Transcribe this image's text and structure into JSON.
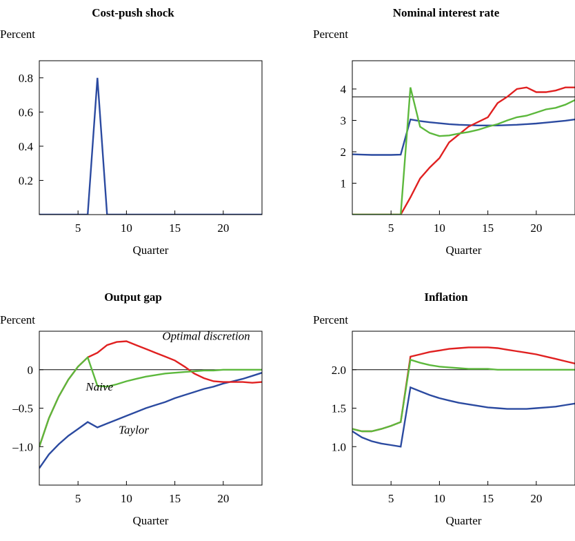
{
  "chart_data": [
    {
      "type": "line",
      "title": "Cost-push shock",
      "ylabel": "Percent",
      "xlabel": "Quarter",
      "xlim": [
        1,
        24
      ],
      "ylim": [
        0,
        0.9
      ],
      "xticks": [
        5,
        10,
        15,
        20
      ],
      "xtick_labels": [
        "5",
        "10",
        "15",
        "20"
      ],
      "yticks": [
        0.2,
        0.4,
        0.6,
        0.8
      ],
      "ytick_labels": [
        "0.2",
        "0.4",
        "0.6",
        "0.8"
      ],
      "refline": null,
      "annotations": [],
      "series": [
        {
          "color": "#2b4aa0",
          "x": [
            1,
            6,
            7,
            8,
            24
          ],
          "y": [
            0,
            0,
            0.8,
            0,
            0
          ]
        }
      ]
    },
    {
      "type": "line",
      "title": "Nominal interest rate",
      "ylabel": "Percent",
      "xlabel": "Quarter",
      "xlim": [
        1,
        24
      ],
      "ylim": [
        0,
        4.9
      ],
      "xticks": [
        5,
        10,
        15,
        20
      ],
      "xtick_labels": [
        "5",
        "10",
        "15",
        "20"
      ],
      "yticks": [
        1,
        2,
        3,
        4
      ],
      "ytick_labels": [
        "1",
        "2",
        "3",
        "4"
      ],
      "refline": 3.75,
      "annotations": [],
      "series": [
        {
          "color": "#2b4aa0",
          "x": [
            1,
            2,
            3,
            4,
            5,
            6,
            7,
            8,
            9,
            10,
            11,
            12,
            13,
            14,
            15,
            16,
            17,
            18,
            19,
            20,
            21,
            22,
            23,
            24
          ],
          "y": [
            1.92,
            1.91,
            1.9,
            1.9,
            1.9,
            1.91,
            3.03,
            2.98,
            2.94,
            2.91,
            2.88,
            2.86,
            2.85,
            2.84,
            2.84,
            2.84,
            2.85,
            2.86,
            2.88,
            2.9,
            2.93,
            2.96,
            2.99,
            3.03
          ]
        },
        {
          "color": "#e02020",
          "x": [
            1,
            2,
            3,
            4,
            5,
            6,
            7,
            8,
            9,
            10,
            11,
            12,
            13,
            14,
            15,
            16,
            17,
            18,
            19,
            20,
            21,
            22,
            23,
            24
          ],
          "y": [
            0,
            0,
            0,
            0,
            0,
            0,
            0.55,
            1.15,
            1.5,
            1.8,
            2.3,
            2.55,
            2.8,
            2.95,
            3.1,
            3.55,
            3.75,
            4.0,
            4.05,
            3.9,
            3.9,
            3.95,
            4.05,
            4.05
          ]
        },
        {
          "color": "#5cb83c",
          "x": [
            1,
            2,
            3,
            4,
            5,
            6,
            7,
            8,
            9,
            10,
            11,
            12,
            13,
            14,
            15,
            16,
            17,
            18,
            19,
            20,
            21,
            22,
            23,
            24
          ],
          "y": [
            0,
            0,
            0,
            0,
            0,
            0,
            4.05,
            2.8,
            2.6,
            2.5,
            2.52,
            2.58,
            2.63,
            2.7,
            2.8,
            2.88,
            3.0,
            3.1,
            3.15,
            3.25,
            3.35,
            3.4,
            3.5,
            3.65
          ]
        }
      ]
    },
    {
      "type": "line",
      "title": "Output gap",
      "ylabel": "Percent",
      "xlabel": "Quarter",
      "xlim": [
        1,
        24
      ],
      "ylim": [
        -1.5,
        0.5
      ],
      "xticks": [
        5,
        10,
        15,
        20
      ],
      "xtick_labels": [
        "5",
        "10",
        "15",
        "20"
      ],
      "yticks": [
        0,
        -0.5,
        -1.0
      ],
      "ytick_labels": [
        "0",
        "–0.5",
        "–1.0"
      ],
      "refline": 0,
      "annotations": [
        {
          "text": "Optimal discretion",
          "x": 13.7,
          "y": 0.39,
          "anchor": "start"
        },
        {
          "text": "Naive",
          "x": 5.8,
          "y": -0.27,
          "anchor": "start"
        },
        {
          "text": "Taylor",
          "x": 9.2,
          "y": -0.83,
          "anchor": "start"
        }
      ],
      "series": [
        {
          "color": "#2b4aa0",
          "x": [
            1,
            2,
            3,
            4,
            5,
            6,
            7,
            8,
            9,
            10,
            11,
            12,
            13,
            14,
            15,
            16,
            17,
            18,
            19,
            20,
            21,
            22,
            23,
            24
          ],
          "y": [
            -1.28,
            -1.1,
            -0.97,
            -0.86,
            -0.77,
            -0.68,
            -0.75,
            -0.7,
            -0.65,
            -0.6,
            -0.55,
            -0.5,
            -0.46,
            -0.42,
            -0.37,
            -0.33,
            -0.29,
            -0.25,
            -0.22,
            -0.18,
            -0.15,
            -0.12,
            -0.08,
            -0.04
          ]
        },
        {
          "color": "#e02020",
          "x": [
            1,
            2,
            3,
            4,
            5,
            6,
            7,
            8,
            9,
            10,
            11,
            12,
            13,
            14,
            15,
            16,
            17,
            18,
            19,
            20,
            21,
            22,
            23,
            24
          ],
          "y": [
            -1.0,
            -0.63,
            -0.35,
            -0.13,
            0.04,
            0.16,
            0.22,
            0.32,
            0.36,
            0.37,
            0.32,
            0.27,
            0.22,
            0.17,
            0.12,
            0.04,
            -0.05,
            -0.11,
            -0.15,
            -0.16,
            -0.16,
            -0.16,
            -0.17,
            -0.16
          ]
        },
        {
          "color": "#5cb83c",
          "x": [
            1,
            2,
            3,
            4,
            5,
            6,
            7,
            8,
            9,
            10,
            11,
            12,
            13,
            14,
            15,
            16,
            17,
            18,
            19,
            20,
            21,
            22,
            23,
            24
          ],
          "y": [
            -1.0,
            -0.63,
            -0.35,
            -0.13,
            0.04,
            0.16,
            -0.21,
            -0.22,
            -0.19,
            -0.15,
            -0.12,
            -0.09,
            -0.07,
            -0.05,
            -0.04,
            -0.03,
            -0.02,
            -0.01,
            -0.01,
            0,
            0,
            0,
            0,
            0
          ]
        }
      ]
    },
    {
      "type": "line",
      "title": "Inflation",
      "ylabel": "Percent",
      "xlabel": "Quarter",
      "xlim": [
        1,
        24
      ],
      "ylim": [
        0.5,
        2.5
      ],
      "xticks": [
        5,
        10,
        15,
        20
      ],
      "xtick_labels": [
        "5",
        "10",
        "15",
        "20"
      ],
      "yticks": [
        1.0,
        1.5,
        2.0
      ],
      "ytick_labels": [
        "1.0",
        "1.5",
        "2.0"
      ],
      "refline": 2.0,
      "annotations": [],
      "series": [
        {
          "color": "#2b4aa0",
          "x": [
            1,
            2,
            3,
            4,
            5,
            6,
            7,
            8,
            9,
            10,
            11,
            12,
            13,
            14,
            15,
            16,
            17,
            18,
            19,
            20,
            21,
            22,
            23,
            24
          ],
          "y": [
            1.2,
            1.12,
            1.07,
            1.04,
            1.02,
            1.0,
            1.77,
            1.72,
            1.67,
            1.63,
            1.6,
            1.57,
            1.55,
            1.53,
            1.51,
            1.5,
            1.49,
            1.49,
            1.49,
            1.5,
            1.51,
            1.52,
            1.54,
            1.56
          ]
        },
        {
          "color": "#e02020",
          "x": [
            1,
            2,
            3,
            4,
            5,
            6,
            7,
            8,
            9,
            10,
            11,
            12,
            13,
            14,
            15,
            16,
            17,
            18,
            19,
            20,
            21,
            22,
            23,
            24
          ],
          "y": [
            1.23,
            1.2,
            1.2,
            1.23,
            1.27,
            1.32,
            2.17,
            2.2,
            2.23,
            2.25,
            2.27,
            2.28,
            2.29,
            2.29,
            2.29,
            2.28,
            2.26,
            2.24,
            2.22,
            2.2,
            2.17,
            2.14,
            2.11,
            2.08
          ]
        },
        {
          "color": "#5cb83c",
          "x": [
            1,
            2,
            3,
            4,
            5,
            6,
            7,
            8,
            9,
            10,
            11,
            12,
            13,
            14,
            15,
            16,
            17,
            18,
            19,
            20,
            21,
            22,
            23,
            24
          ],
          "y": [
            1.23,
            1.2,
            1.2,
            1.23,
            1.27,
            1.32,
            2.13,
            2.09,
            2.06,
            2.04,
            2.03,
            2.02,
            2.01,
            2.01,
            2.01,
            2.0,
            2.0,
            2.0,
            2.0,
            2.0,
            2.0,
            2.0,
            2.0,
            2.0
          ]
        }
      ]
    }
  ]
}
